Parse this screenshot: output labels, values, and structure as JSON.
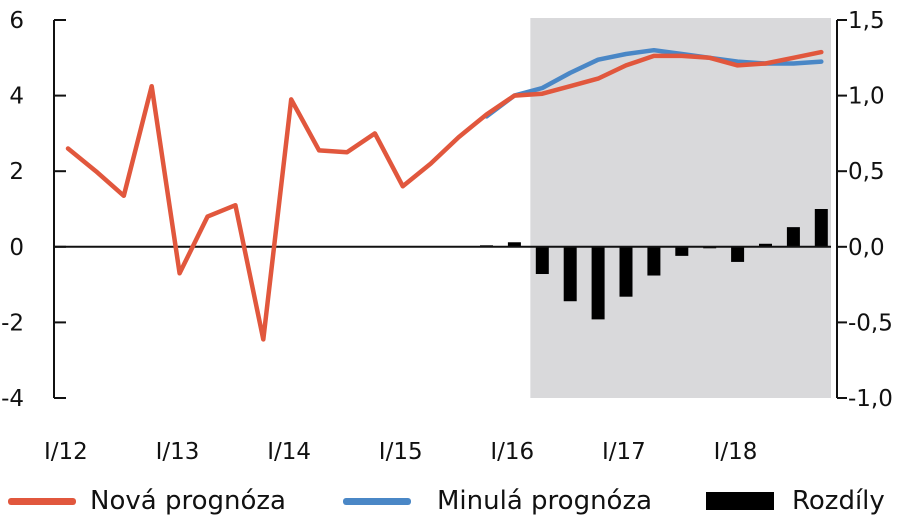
{
  "chart_data": {
    "type": "line",
    "x_tick_labels": [
      "I/12",
      "I/13",
      "I/14",
      "I/15",
      "I/16",
      "I/17",
      "I/18"
    ],
    "left_axis": {
      "ticks": [
        "6",
        "4",
        "2",
        "0",
        "-2",
        "-4"
      ],
      "values": [
        6,
        4,
        2,
        0,
        -2,
        -4
      ],
      "ylim": [
        -4,
        6
      ]
    },
    "right_axis": {
      "ticks": [
        "1,5",
        "1,0",
        "0,5",
        "0,0",
        "-0,5",
        "-1,0"
      ],
      "values": [
        1.5,
        1.0,
        0.5,
        0.0,
        -0.5,
        -1.0
      ],
      "ylim": [
        -1.0,
        1.5
      ]
    },
    "forecast_shading": {
      "from_quarter": "II/16",
      "to_quarter": "IV/18"
    },
    "quarters": [
      "I/12",
      "II/12",
      "III/12",
      "IV/12",
      "I/13",
      "II/13",
      "III/13",
      "IV/13",
      "I/14",
      "II/14",
      "III/14",
      "IV/14",
      "I/15",
      "II/15",
      "III/15",
      "IV/15",
      "I/16",
      "II/16",
      "III/16",
      "IV/16",
      "I/17",
      "II/17",
      "III/17",
      "IV/17",
      "I/18",
      "II/18",
      "III/18",
      "IV/18"
    ],
    "series": [
      {
        "name": "Nová prognóza",
        "axis": "left",
        "type": "line",
        "color": "#e1573d",
        "values": [
          2.6,
          2.0,
          1.35,
          4.25,
          -0.7,
          0.8,
          1.1,
          -2.45,
          3.9,
          2.55,
          2.5,
          3.0,
          1.6,
          2.2,
          2.9,
          3.5,
          4.0,
          4.05,
          4.25,
          4.45,
          4.8,
          5.05,
          5.05,
          5.0,
          4.8,
          4.85,
          5.0,
          5.15
        ]
      },
      {
        "name": "Minulá prognóza",
        "axis": "left",
        "type": "line",
        "color": "#4a87c6",
        "values": [
          null,
          null,
          null,
          null,
          null,
          null,
          null,
          null,
          null,
          null,
          null,
          null,
          null,
          null,
          null,
          3.45,
          4.0,
          4.2,
          4.6,
          4.95,
          5.1,
          5.2,
          5.1,
          5.0,
          4.9,
          4.85,
          4.85,
          4.9
        ]
      },
      {
        "name": "Rozdíly",
        "axis": "right",
        "type": "bar",
        "color": "#000000",
        "values": [
          null,
          null,
          null,
          null,
          null,
          null,
          null,
          null,
          null,
          null,
          null,
          null,
          null,
          null,
          null,
          0.01,
          0.03,
          -0.18,
          -0.36,
          -0.48,
          -0.33,
          -0.19,
          -0.06,
          0.0,
          -0.1,
          0.02,
          0.13,
          0.25
        ]
      }
    ],
    "legend": [
      "Nová prognóza",
      "Minulá prognóza",
      "Rozdíly"
    ],
    "grid": false,
    "legend_position": "bottom"
  }
}
